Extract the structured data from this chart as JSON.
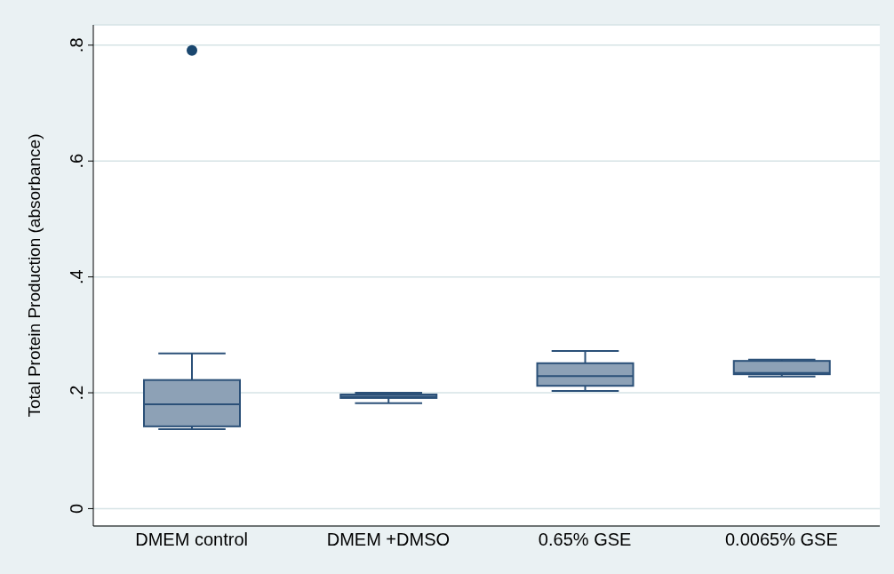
{
  "chart_data": {
    "type": "box",
    "ylabel": "Total Protein Production (absorbance)",
    "categories": [
      "DMEM control",
      "DMEM +DMSO",
      "0.65% GSE",
      "0.0065% GSE"
    ],
    "ylim": [
      -0.03,
      0.835
    ],
    "yticks": [
      {
        "value": 0,
        "label": "0"
      },
      {
        "value": 0.2,
        "label": ".2"
      },
      {
        "value": 0.4,
        "label": ".4"
      },
      {
        "value": 0.6,
        "label": ".6"
      },
      {
        "value": 0.8,
        "label": ".8"
      }
    ],
    "grid": "y",
    "series": [
      {
        "color": "#8da1b6",
        "boxes": [
          {
            "low": 0.137,
            "q1": 0.142,
            "median": 0.18,
            "q3": 0.222,
            "high": 0.268,
            "outliers": [
              0.791
            ]
          },
          {
            "low": 0.182,
            "q1": 0.191,
            "median": 0.193,
            "q3": 0.197,
            "high": 0.2
          },
          {
            "low": 0.203,
            "q1": 0.212,
            "median": 0.229,
            "q3": 0.251,
            "high": 0.272
          },
          {
            "low": 0.228,
            "q1": 0.232,
            "median": 0.234,
            "q3": 0.255,
            "high": 0.257
          }
        ]
      }
    ]
  }
}
